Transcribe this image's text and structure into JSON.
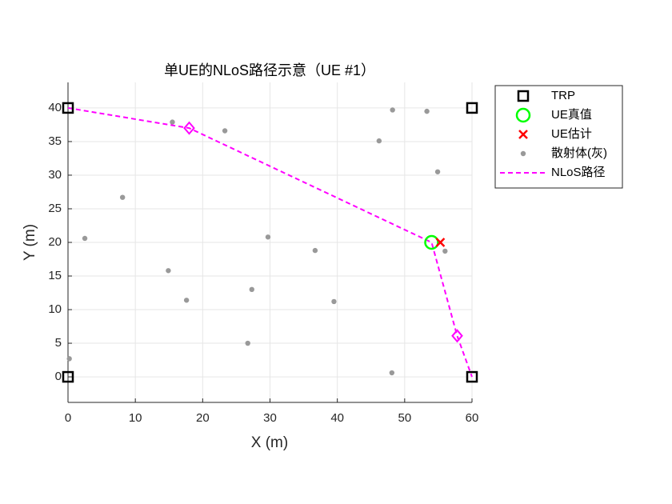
{
  "chart_data": {
    "type": "scatter",
    "title": "单UE的NLoS路径示意（UE #1）",
    "x_label": "X (m)",
    "y_label": "Y (m)",
    "xlim": [
      0,
      60
    ],
    "ylim": [
      -3.8,
      43.8
    ],
    "xticks": [
      0,
      10,
      20,
      30,
      40,
      50,
      60
    ],
    "yticks": [
      0,
      5,
      10,
      15,
      20,
      25,
      30,
      35,
      40
    ],
    "grid": true,
    "legend_position": "outside-right",
    "series": [
      {
        "name": "TRP",
        "color": "#000000",
        "marker": "square",
        "x": [
          0,
          60,
          0,
          60
        ],
        "y": [
          0,
          0,
          40,
          40
        ]
      },
      {
        "name": "UE真值",
        "color": "#00ff00",
        "marker": "circle",
        "x": [
          54
        ],
        "y": [
          20
        ]
      },
      {
        "name": "UE估计",
        "color": "#ff0000",
        "marker": "x",
        "x": [
          55.3
        ],
        "y": [
          20
        ]
      },
      {
        "name": "散射体(灰)",
        "color": "#999999",
        "marker": "dot",
        "x": [
          48.2,
          53.3,
          15.5,
          23.3,
          46.2,
          54.9,
          8.1,
          2.5,
          29.7,
          36.7,
          56.0,
          14.9,
          27.3,
          17.6,
          39.5,
          26.7,
          0.2,
          48.1
        ],
        "y": [
          39.7,
          39.5,
          37.9,
          36.6,
          35.1,
          30.5,
          26.7,
          20.6,
          20.8,
          18.8,
          18.7,
          15.8,
          13.0,
          11.4,
          11.2,
          5.0,
          2.7,
          0.6
        ]
      },
      {
        "name": "NLoS路径",
        "color": "#ff00ff",
        "marker": "dashed",
        "x": [
          0,
          18,
          54,
          57.8,
          60
        ],
        "y": [
          40,
          37,
          20,
          6.1,
          0
        ]
      }
    ],
    "reflection_points": {
      "color": "#ff00ff",
      "marker": "diamond",
      "x": [
        18,
        57.8
      ],
      "y": [
        37,
        6.1
      ]
    }
  }
}
